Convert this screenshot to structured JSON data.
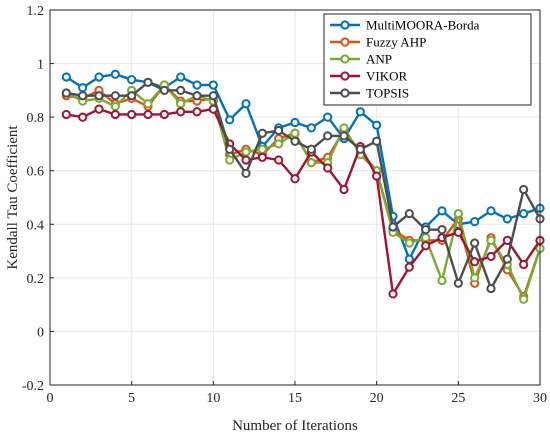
{
  "chart_data": {
    "type": "line",
    "title": "",
    "xlabel": "Number of Iterations",
    "ylabel": "Kendall Tau Coefficient",
    "xlim": [
      0,
      30
    ],
    "ylim": [
      -0.2,
      1.2
    ],
    "xticks": [
      "0",
      "5",
      "10",
      "15",
      "20",
      "25",
      "30"
    ],
    "yticks": [
      "-0.2",
      "0",
      "0.2",
      "0.4",
      "0.6",
      "0.8",
      "1",
      "1.2"
    ],
    "grid": true,
    "legend_position": "top-right",
    "x": [
      1,
      2,
      3,
      4,
      5,
      6,
      7,
      8,
      9,
      10,
      11,
      12,
      13,
      14,
      15,
      16,
      17,
      18,
      19,
      20,
      21,
      22,
      23,
      24,
      25,
      26,
      27,
      28,
      29,
      30
    ],
    "series": [
      {
        "name": "MultiMOORA-Borda",
        "color": "#0072BD",
        "values": [
          0.95,
          0.91,
          0.95,
          0.96,
          0.94,
          0.93,
          0.91,
          0.95,
          0.92,
          0.92,
          0.79,
          0.85,
          0.69,
          0.76,
          0.78,
          0.76,
          0.8,
          0.72,
          0.82,
          0.77,
          0.43,
          0.27,
          0.39,
          0.45,
          0.4,
          0.41,
          0.45,
          0.42,
          0.44,
          0.46
        ]
      },
      {
        "name": "Fuzzy AHP",
        "color": "#D95319",
        "values": [
          0.88,
          0.87,
          0.9,
          0.85,
          0.87,
          0.84,
          0.92,
          0.86,
          0.86,
          0.87,
          0.66,
          0.68,
          0.66,
          0.72,
          0.74,
          0.63,
          0.65,
          0.75,
          0.67,
          0.6,
          0.38,
          0.34,
          0.34,
          0.34,
          0.42,
          0.18,
          0.35,
          0.23,
          0.13,
          0.31
        ]
      },
      {
        "name": "ANP",
        "color": "#77AC30",
        "values": [
          0.89,
          0.86,
          0.87,
          0.84,
          0.9,
          0.85,
          0.92,
          0.85,
          0.88,
          0.86,
          0.64,
          0.67,
          0.68,
          0.7,
          0.74,
          0.63,
          0.63,
          0.76,
          0.66,
          0.6,
          0.37,
          0.33,
          0.35,
          0.19,
          0.44,
          0.2,
          0.34,
          0.25,
          0.12,
          0.31
        ]
      },
      {
        "name": "VIKOR",
        "color": "#A2142F",
        "values": [
          0.81,
          0.8,
          0.83,
          0.81,
          0.81,
          0.81,
          0.81,
          0.82,
          0.82,
          0.83,
          0.7,
          0.64,
          0.65,
          0.64,
          0.57,
          0.67,
          0.61,
          0.53,
          0.69,
          0.58,
          0.14,
          0.24,
          0.32,
          0.35,
          0.37,
          0.26,
          0.28,
          0.34,
          0.25,
          0.34
        ]
      },
      {
        "name": "TOPSIS",
        "color": "#4D4D4D",
        "values": [
          0.89,
          0.88,
          0.88,
          0.88,
          0.88,
          0.93,
          0.9,
          0.9,
          0.88,
          0.88,
          0.68,
          0.59,
          0.74,
          0.75,
          0.71,
          0.68,
          0.73,
          0.73,
          0.68,
          0.71,
          0.39,
          0.44,
          0.38,
          0.38,
          0.18,
          0.33,
          0.16,
          0.27,
          0.53,
          0.42
        ]
      }
    ]
  }
}
